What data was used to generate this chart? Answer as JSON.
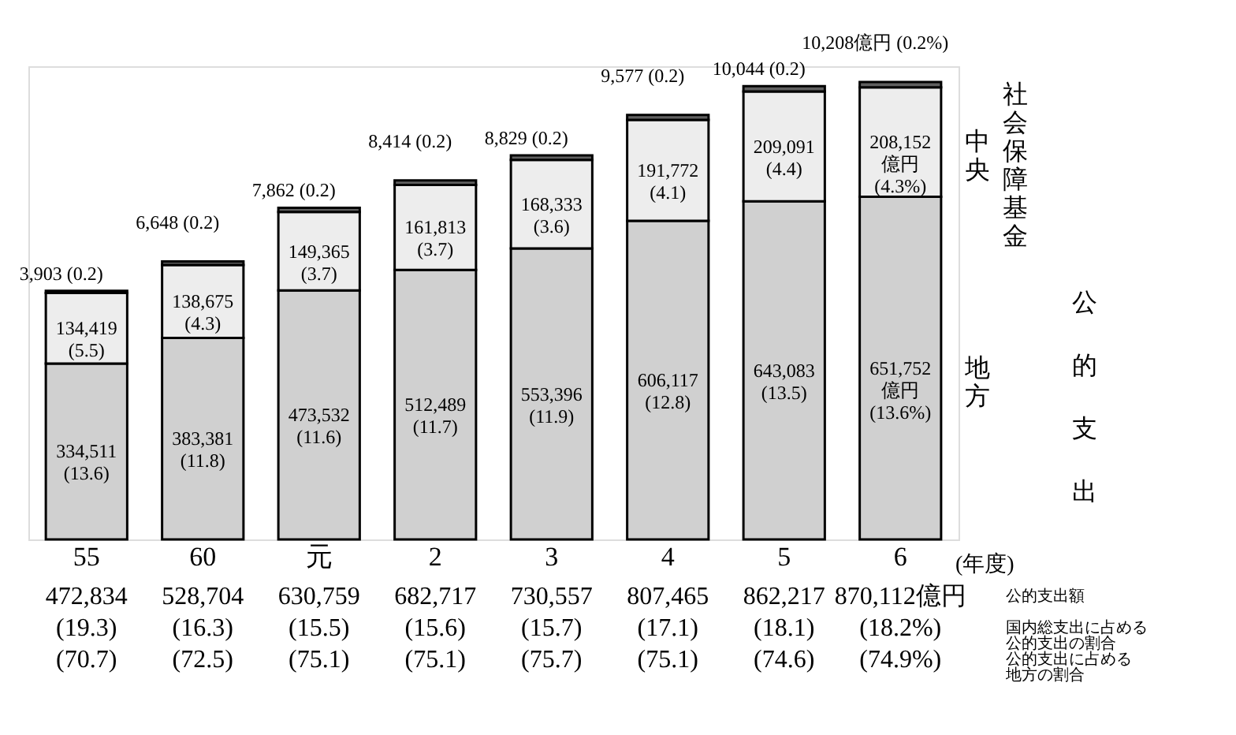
{
  "chart_data": {
    "type": "bar",
    "stacked": true,
    "xlabel": "(年度)",
    "categories": [
      "55",
      "60",
      "元",
      "2",
      "3",
      "4",
      "5",
      "6"
    ],
    "series": [
      {
        "name": "地方",
        "color": "#d0d0d0",
        "values": [
          334511,
          383381,
          473532,
          512489,
          553396,
          606117,
          643083,
          651752
        ],
        "value_labels": [
          "334,511\n(13.6)",
          "383,381\n(11.8)",
          "473,532\n(11.6)",
          "512,489\n(11.7)",
          "553,396\n(11.9)",
          "606,117\n(12.8)",
          "643,083\n(13.5)",
          "651,752\n億円\n(13.6%)"
        ]
      },
      {
        "name": "中央",
        "color": "#ededed",
        "values": [
          134419,
          138675,
          149365,
          161813,
          168333,
          191772,
          209091,
          208152
        ],
        "value_labels": [
          "134,419\n(5.5)",
          "138,675\n(4.3)",
          "149,365\n(3.7)",
          "161,813\n(3.7)",
          "168,333\n(3.6)",
          "191,772\n(4.1)",
          "209,091\n(4.4)",
          "208,152\n億円\n(4.3%)"
        ]
      },
      {
        "name": "社会保障基金",
        "color": "#606060",
        "values": [
          3903,
          6648,
          7862,
          8414,
          8829,
          9577,
          10044,
          10208
        ],
        "value_labels": [
          "3,903 (0.2)",
          "6,648 (0.2)",
          "7,862 (0.2)",
          "8,414 (0.2)",
          "8,829 (0.2)",
          "9,577 (0.2)",
          "10,044 (0.2)",
          "10,208億円 (0.2%)"
        ]
      }
    ],
    "totals": [
      "472,834",
      "528,704",
      "630,759",
      "682,717",
      "730,557",
      "807,465",
      "862,217",
      "870,112億円"
    ],
    "annotations": [
      "公的支出額",
      "国内総支出に占める公的支出の割合",
      "公的支出に占める地方の割合",
      "公的支出",
      "(19.3)",
      "(16.3)",
      "(15.5)",
      "(15.6)",
      "(15.7)",
      "(17.1)",
      "(18.1)",
      "(18.2%)",
      "(70.7)",
      "(72.5)",
      "(75.1)",
      "(75.1)",
      "(75.7)",
      "(75.1)",
      "(74.6)",
      "(74.9%)"
    ]
  }
}
